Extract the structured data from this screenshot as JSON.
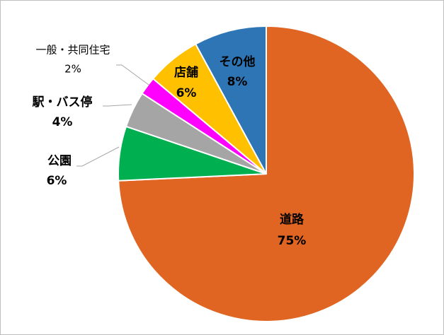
{
  "chart_data": {
    "type": "pie",
    "categories": [
      "道路",
      "公園",
      "駅・バス停",
      "一般・共同住宅",
      "店舗",
      "その他"
    ],
    "values": [
      75,
      6,
      4,
      2,
      6,
      8
    ],
    "value_labels": [
      "75%",
      "6%",
      "4%",
      "2%",
      "6%",
      "8%"
    ],
    "colors": [
      "#e06422",
      "#00b050",
      "#a5a5a5",
      "#ff00ff",
      "#ffc000",
      "#2e75b6"
    ]
  }
}
